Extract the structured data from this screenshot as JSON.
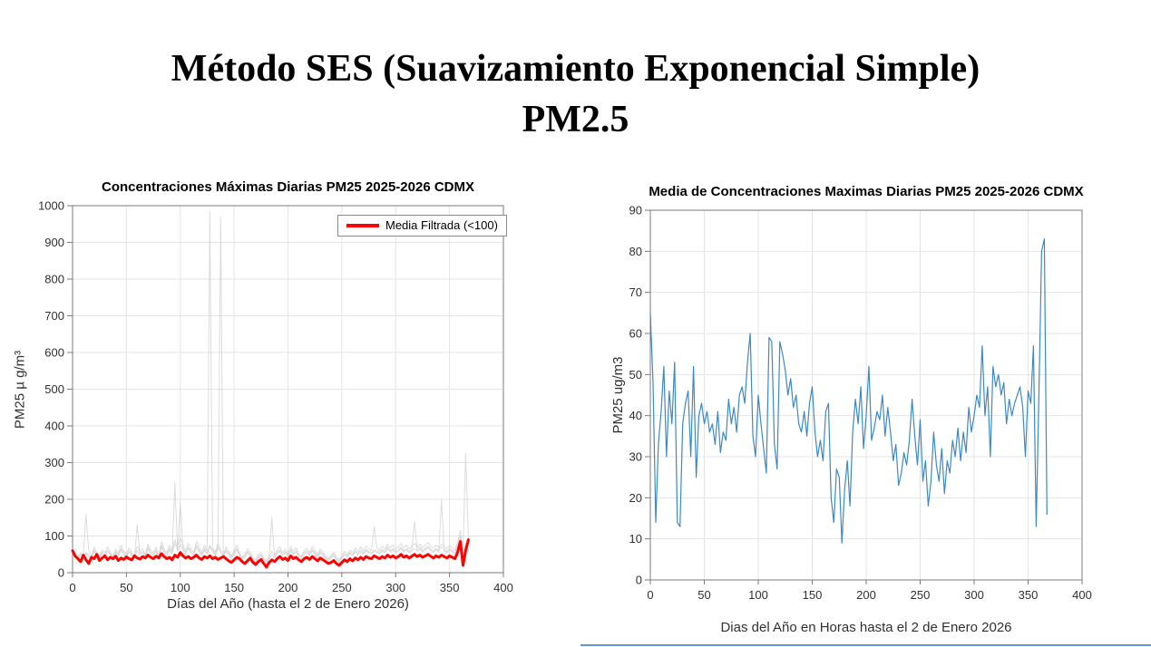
{
  "page": {
    "title_line1": "Método SES (Suavizamiento Exponencial Simple)",
    "title_line2": "PM2.5",
    "bottom_line_color": "#5b9bd5",
    "grid_color": "#e4e4e4",
    "axes_color": "#7b7b7b"
  },
  "chart_data": [
    {
      "type": "line",
      "title": "Concentraciones Máximas Diarias PM25 2025-2026 CDMX",
      "xlabel": "Días del Año (hasta el 2 de Enero 2026)",
      "ylabel": "PM25 µ g/m³",
      "xlim": [
        0,
        400
      ],
      "ylim": [
        0,
        1000
      ],
      "xticks": [
        0,
        50,
        100,
        150,
        200,
        250,
        300,
        350,
        400
      ],
      "yticks": [
        0,
        100,
        200,
        300,
        400,
        500,
        600,
        700,
        800,
        900,
        1000
      ],
      "grid": true,
      "legend": {
        "position": "top-right",
        "entries": [
          {
            "label": "Media Filtrada (<100)",
            "color": "#ff0000"
          }
        ]
      },
      "x_start": 0,
      "x_step": 2.5,
      "series": [
        {
          "name": "raw-station-1",
          "color": "#c9c9c9",
          "opacity": 0.65,
          "width": 1,
          "values": [
            65,
            50,
            42,
            55,
            48,
            160,
            60,
            45,
            70,
            55,
            48,
            62,
            55,
            70,
            58,
            45,
            65,
            52,
            75,
            60,
            50,
            68,
            55,
            45,
            72,
            58,
            65,
            50,
            78,
            62,
            55,
            70,
            48,
            85,
            65,
            55,
            75,
            60,
            90,
            70,
            95,
            75,
            60,
            80,
            65,
            55,
            85,
            70,
            55,
            75,
            60,
            985,
            70,
            55,
            80,
            62,
            50,
            70,
            58,
            45,
            60,
            75,
            55,
            42,
            50,
            65,
            55,
            40,
            35,
            48,
            55,
            40,
            30,
            45,
            58,
            48,
            62,
            70,
            55,
            65,
            50,
            72,
            58,
            68,
            52,
            45,
            60,
            68,
            55,
            72,
            60,
            48,
            65,
            55,
            45,
            38,
            48,
            55,
            42,
            35,
            48,
            58,
            50,
            62,
            55,
            68,
            58,
            70,
            60,
            72,
            65,
            60,
            125,
            68,
            60,
            72,
            65,
            78,
            68,
            75,
            65,
            70,
            80,
            68,
            75,
            65,
            72,
            80,
            70,
            78,
            68,
            75,
            82,
            72,
            65,
            75,
            68,
            78,
            72,
            65,
            75,
            68,
            60,
            85,
            115,
            55,
            325,
            90
          ]
        },
        {
          "name": "raw-station-2",
          "color": "#c9c9c9",
          "opacity": 0.65,
          "width": 1,
          "values": [
            55,
            42,
            35,
            48,
            40,
            52,
            45,
            38,
            58,
            46,
            40,
            52,
            46,
            58,
            48,
            38,
            55,
            44,
            62,
            50,
            42,
            56,
            46,
            38,
            60,
            48,
            54,
            42,
            65,
            52,
            46,
            58,
            40,
            70,
            54,
            46,
            62,
            50,
            245,
            58,
            78,
            62,
            50,
            66,
            54,
            46,
            70,
            58,
            46,
            62,
            50,
            70,
            58,
            46,
            66,
            970,
            42,
            58,
            48,
            38,
            50,
            62,
            46,
            35,
            42,
            54,
            46,
            33,
            28,
            40,
            46,
            33,
            25,
            38,
            48,
            40,
            52,
            58,
            46,
            54,
            42,
            60,
            48,
            56,
            44,
            38,
            50,
            56,
            46,
            60,
            50,
            40,
            54,
            46,
            38,
            32,
            40,
            46,
            35,
            28,
            40,
            48,
            42,
            52,
            46,
            56,
            48,
            58,
            50,
            60,
            54,
            50,
            58,
            56,
            50,
            60,
            54,
            65,
            56,
            62,
            54,
            58,
            66,
            56,
            62,
            54,
            60,
            66,
            58,
            65,
            56,
            62,
            68,
            60,
            54,
            62,
            56,
            200,
            60,
            54,
            62,
            56,
            50,
            70,
            95,
            45,
            75,
            60
          ]
        },
        {
          "name": "raw-station-3",
          "color": "#c9c9c9",
          "opacity": 0.65,
          "width": 1,
          "values": [
            58,
            46,
            38,
            50,
            44,
            56,
            48,
            42,
            62,
            50,
            44,
            56,
            50,
            62,
            52,
            42,
            58,
            48,
            66,
            54,
            46,
            60,
            50,
            42,
            130,
            52,
            58,
            46,
            70,
            56,
            50,
            62,
            44,
            75,
            58,
            50,
            66,
            54,
            80,
            62,
            190,
            66,
            54,
            70,
            58,
            50,
            75,
            62,
            50,
            66,
            54,
            75,
            62,
            50,
            70,
            56,
            46,
            62,
            52,
            42,
            54,
            66,
            50,
            38,
            46,
            58,
            50,
            36,
            30,
            44,
            50,
            36,
            28,
            42,
            150,
            44,
            56,
            62,
            50,
            58,
            46,
            64,
            52,
            60,
            48,
            42,
            54,
            60,
            50,
            64,
            54,
            44,
            58,
            50,
            42,
            35,
            44,
            50,
            38,
            30,
            44,
            52,
            46,
            56,
            50,
            60,
            52,
            62,
            54,
            64,
            58,
            54,
            62,
            60,
            54,
            64,
            58,
            70,
            60,
            66,
            58,
            62,
            70,
            60,
            66,
            58,
            64,
            140,
            62,
            70,
            60,
            66,
            72,
            64,
            58,
            66,
            60,
            70,
            64,
            58,
            66,
            60,
            54,
            75,
            100,
            48,
            80,
            65
          ]
        },
        {
          "name": "media-filtrada",
          "color": "#ff0000",
          "opacity": 1,
          "width": 3,
          "values": [
            60,
            45,
            38,
            30,
            48,
            35,
            25,
            42,
            38,
            50,
            33,
            40,
            46,
            35,
            42,
            38,
            45,
            33,
            40,
            36,
            43,
            38,
            35,
            46,
            40,
            37,
            44,
            40,
            48,
            42,
            38,
            45,
            40,
            52,
            44,
            38,
            42,
            35,
            48,
            42,
            55,
            46,
            40,
            44,
            38,
            42,
            48,
            40,
            36,
            44,
            40,
            46,
            38,
            42,
            36,
            40,
            44,
            38,
            32,
            28,
            35,
            42,
            38,
            30,
            25,
            33,
            40,
            28,
            22,
            30,
            36,
            25,
            15,
            28,
            35,
            30,
            38,
            44,
            36,
            40,
            33,
            46,
            38,
            42,
            35,
            30,
            38,
            42,
            36,
            44,
            38,
            32,
            40,
            35,
            30,
            25,
            28,
            33,
            25,
            20,
            28,
            35,
            30,
            38,
            32,
            40,
            35,
            42,
            36,
            44,
            40,
            38,
            46,
            42,
            38,
            44,
            40,
            48,
            42,
            46,
            40,
            44,
            50,
            42,
            46,
            40,
            45,
            50,
            44,
            48,
            42,
            46,
            50,
            45,
            40,
            46,
            42,
            48,
            44,
            40,
            46,
            42,
            38,
            55,
            85,
            20,
            60,
            90
          ]
        }
      ]
    },
    {
      "type": "line",
      "title": "Media de Concentraciones Maximas Diarias PM25 2025-2026 CDMX",
      "xlabel": "Dias del Año en Horas hasta el 2 de Enero 2026",
      "ylabel": "PM25 ug/m3",
      "xlim": [
        0,
        400
      ],
      "ylim": [
        0,
        90
      ],
      "xticks": [
        0,
        50,
        100,
        150,
        200,
        250,
        300,
        350,
        400
      ],
      "yticks": [
        0,
        10,
        20,
        30,
        40,
        50,
        60,
        70,
        80,
        90
      ],
      "grid": true,
      "legend": null,
      "x_start": 0,
      "x_step": 2.5,
      "series": [
        {
          "name": "media-diaria",
          "color": "#3d89c5",
          "opacity": 1,
          "width": 1.2,
          "values": [
            65,
            48,
            14,
            33,
            41,
            52,
            30,
            46,
            38,
            53,
            14,
            13,
            38,
            43,
            46,
            30,
            52,
            25,
            40,
            43,
            38,
            41,
            36,
            38,
            33,
            41,
            31,
            36,
            34,
            44,
            38,
            42,
            36,
            45,
            47,
            43,
            53,
            60,
            35,
            30,
            45,
            38,
            32,
            26,
            59,
            58,
            33,
            27,
            58,
            55,
            51,
            45,
            49,
            42,
            45,
            38,
            36,
            41,
            35,
            43,
            47,
            36,
            30,
            34,
            29,
            41,
            43,
            20,
            14,
            27,
            25,
            9,
            22,
            29,
            18,
            36,
            44,
            38,
            47,
            32,
            40,
            52,
            34,
            37,
            41,
            39,
            45,
            35,
            42,
            36,
            29,
            33,
            23,
            26,
            31,
            28,
            34,
            44,
            35,
            28,
            39,
            24,
            29,
            18,
            24,
            36,
            28,
            24,
            32,
            21,
            29,
            26,
            34,
            30,
            37,
            29,
            36,
            31,
            42,
            36,
            40,
            45,
            42,
            57,
            40,
            47,
            30,
            52,
            47,
            50,
            45,
            48,
            38,
            44,
            40,
            43,
            45,
            47,
            42,
            30,
            46,
            43,
            57,
            13,
            45,
            80,
            83,
            16
          ]
        }
      ]
    }
  ]
}
